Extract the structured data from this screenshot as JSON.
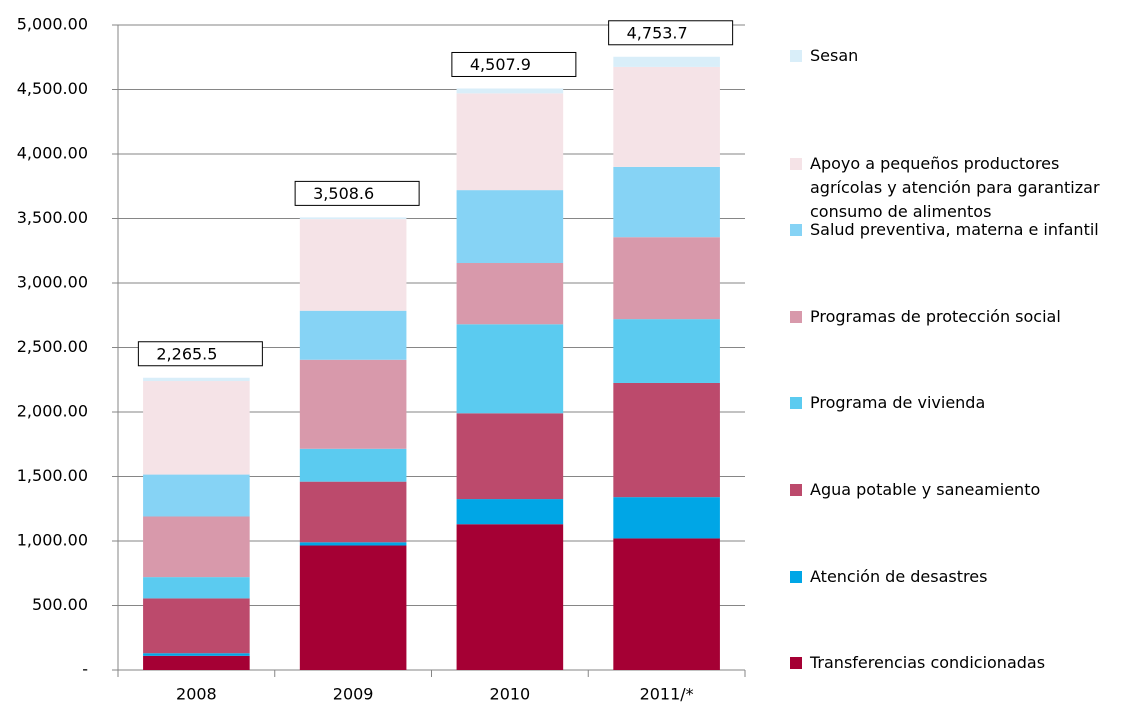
{
  "chart_data": {
    "type": "stacked_bar",
    "categories": [
      "2008",
      "2009",
      "2010",
      "2011/*"
    ],
    "series": [
      {
        "name": "Transferencias condicionadas",
        "color": "#a50034",
        "values": [
          110,
          965,
          1130,
          1020
        ]
      },
      {
        "name": "Atención de desastres",
        "color": "#00a6e6",
        "values": [
          20,
          25,
          195,
          320
        ]
      },
      {
        "name": "Agua potable y saneamiento",
        "color": "#bc4a6c",
        "values": [
          425,
          470,
          665,
          885
        ]
      },
      {
        "name": "Programa de vivienda",
        "color": "#5bcbf0",
        "values": [
          165,
          255,
          690,
          495
        ]
      },
      {
        "name": "Programas de protección social",
        "color": "#d899ab",
        "values": [
          470,
          690,
          475,
          635
        ]
      },
      {
        "name": "Salud preventiva, materna e infantil",
        "color": "#86d3f5",
        "values": [
          325,
          380,
          565,
          545
        ]
      },
      {
        "name": "Apoyo a pequeños productores agrícolas y atención para garantizar consumo de alimentos",
        "color": "#f5e3e7",
        "values": [
          725,
          710,
          750,
          775
        ]
      },
      {
        "name": "Sesan",
        "color": "#d9eef9",
        "values": [
          25.5,
          13.6,
          37.9,
          78.7
        ]
      }
    ],
    "total_labels": [
      "2,265.5",
      "3,508.6",
      "4,507.9",
      "4,753.7"
    ],
    "ylim": [
      0,
      5000
    ],
    "yticks": [
      {
        "value": 0,
        "label": "-"
      },
      {
        "value": 500,
        "label": "500.00"
      },
      {
        "value": 1000,
        "label": "1,000.00"
      },
      {
        "value": 1500,
        "label": "1,500.00"
      },
      {
        "value": 2000,
        "label": "2,000.00"
      },
      {
        "value": 2500,
        "label": "2,500.00"
      },
      {
        "value": 3000,
        "label": "3,000.00"
      },
      {
        "value": 3500,
        "label": "3,500.00"
      },
      {
        "value": 4000,
        "label": "4,000.00"
      },
      {
        "value": 4500,
        "label": "4,500.00"
      },
      {
        "value": 5000,
        "label": "5,000.00"
      }
    ],
    "grid": true,
    "legend": "right"
  }
}
